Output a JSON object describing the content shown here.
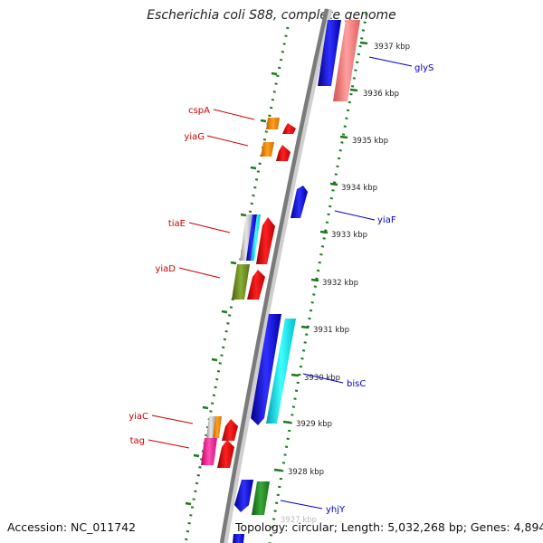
{
  "title": "Escherichia coli S88, complete genome",
  "footer": {
    "accession": "Accession: NC_011742",
    "topology": "Topology: circular; Length: 5,032,268 bp; Genes: 4,894"
  },
  "colors": {
    "backbone": "#7a7a7a",
    "ruler": "#1a7a1a",
    "label_left": "#cc0000",
    "label_right": "#0000cc",
    "blue": "#0000ee",
    "red": "#ee0000",
    "salmon": "#f08080",
    "cyan": "#00e5ee",
    "orange": "#ff8c00",
    "olive": "#6b8e23",
    "green": "#228b22",
    "magenta": "#ff1493",
    "silver": "#c0c0c0"
  },
  "ticks": [
    "3937 kbp",
    "3936 kbp",
    "3935 kbp",
    "3934 kbp",
    "3933 kbp",
    "3932 kbp",
    "3931 kbp",
    "3930 kbp",
    "3929 kbp",
    "3928 kbp",
    "3927 kbp"
  ],
  "gene_labels": [
    {
      "name": "glyS",
      "side": "right"
    },
    {
      "name": "cspA",
      "side": "left"
    },
    {
      "name": "yiaG",
      "side": "left"
    },
    {
      "name": "yiaF",
      "side": "right"
    },
    {
      "name": "tiaE",
      "side": "left"
    },
    {
      "name": "yiaD",
      "side": "left"
    },
    {
      "name": "bisC",
      "side": "right"
    },
    {
      "name": "yiaC",
      "side": "left"
    },
    {
      "name": "tag",
      "side": "left"
    },
    {
      "name": "yhjY",
      "side": "right"
    }
  ]
}
